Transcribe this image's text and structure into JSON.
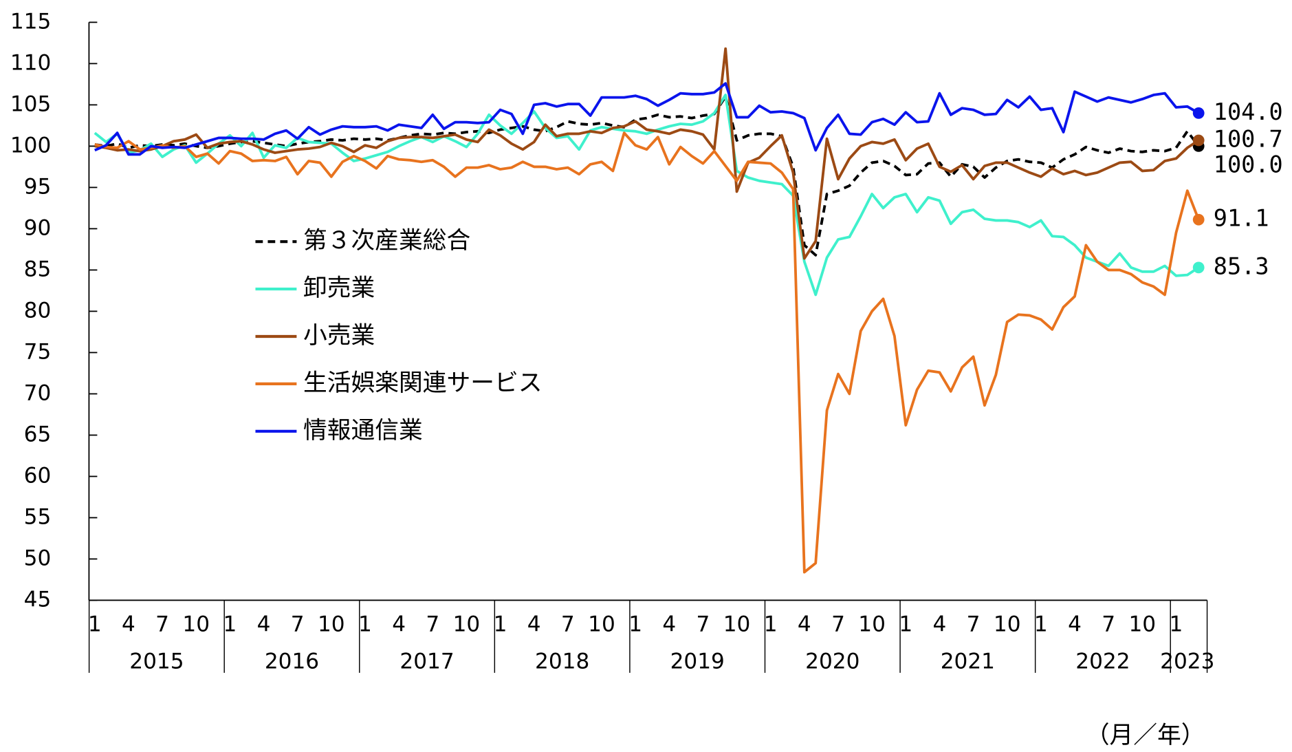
{
  "chart_data": {
    "type": "line",
    "x_unit_label": "（月／年）",
    "categories": [
      "1",
      null,
      null,
      "4",
      null,
      null,
      "7",
      null,
      null,
      "10",
      null,
      null,
      "1",
      null,
      null,
      "4",
      null,
      null,
      "7",
      null,
      null,
      "10",
      null,
      null,
      "1",
      null,
      null,
      "4",
      null,
      null,
      "7",
      null,
      null,
      "10",
      null,
      null,
      "1",
      null,
      null,
      "4",
      null,
      null,
      "7",
      null,
      null,
      "10",
      null,
      null,
      "1",
      null,
      null,
      "4",
      null,
      null,
      "7",
      null,
      null,
      "10",
      null,
      null,
      "1",
      null,
      null,
      "4",
      null,
      null,
      "7",
      null,
      null,
      "10",
      null,
      null,
      "1",
      null,
      null,
      "4",
      null,
      null,
      "7",
      null,
      null,
      "10",
      null,
      null,
      "1",
      null,
      null,
      "4",
      null,
      null,
      "7",
      null,
      null,
      "10",
      null,
      null,
      "1",
      null,
      null
    ],
    "years": [
      "2015",
      "2016",
      "2017",
      "2018",
      "2019",
      "2020",
      "2021",
      "2022",
      "2023"
    ],
    "ylim": [
      45,
      115
    ],
    "yticks": [
      45,
      50,
      55,
      60,
      65,
      70,
      75,
      80,
      85,
      90,
      95,
      100,
      105,
      110,
      115
    ],
    "grid": false,
    "legend": "left",
    "series": [
      {
        "name": "第３次産業総合",
        "color": "#000000",
        "dashed": true,
        "end_label": "100.0",
        "values": [
          100.2,
          100.0,
          100.3,
          99.8,
          100.1,
          100.0,
          100.2,
          100.1,
          100.3,
          100.0,
          99.8,
          100.0,
          100.3,
          100.5,
          100.6,
          100.4,
          100.2,
          100.0,
          100.3,
          100.5,
          100.6,
          100.8,
          100.7,
          100.9,
          100.8,
          100.9,
          100.7,
          101.0,
          101.3,
          101.5,
          101.4,
          101.6,
          101.5,
          101.7,
          101.8,
          101.6,
          102.0,
          102.2,
          102.4,
          102.0,
          101.8,
          102.3,
          103.0,
          102.7,
          102.6,
          102.8,
          102.5,
          102.3,
          103.2,
          103.4,
          103.8,
          103.5,
          103.6,
          103.4,
          103.7,
          103.9,
          106.0,
          100.7,
          101.3,
          101.5,
          101.5,
          101.2,
          97.5,
          88.0,
          86.8,
          94.2,
          94.6,
          95.2,
          96.8,
          98.0,
          98.2,
          97.6,
          96.5,
          96.6,
          97.9,
          98.0,
          96.3,
          97.8,
          97.5,
          96.2,
          97.4,
          98.2,
          98.4,
          98.1,
          98.0,
          97.4,
          98.4,
          99.0,
          99.9,
          99.5,
          99.2,
          99.7,
          99.4,
          99.3,
          99.5,
          99.4,
          99.8,
          101.8,
          100.0
        ]
      },
      {
        "name": "卸売業",
        "color": "#3ff0cc",
        "dashed": false,
        "end_label": "85.3",
        "values": [
          101.6,
          100.5,
          101.5,
          99.2,
          99.5,
          100.3,
          98.7,
          99.6,
          100.1,
          98.0,
          99.1,
          100.3,
          101.3,
          100.0,
          101.6,
          98.6,
          100.1,
          99.8,
          101.0,
          100.5,
          100.4,
          100.3,
          99.2,
          98.2,
          98.5,
          98.9,
          99.3,
          100.0,
          100.6,
          101.1,
          100.5,
          101.2,
          100.6,
          99.9,
          101.5,
          103.8,
          102.5,
          101.5,
          102.8,
          104.2,
          102.2,
          101.0,
          101.2,
          99.6,
          101.9,
          102.3,
          102.1,
          101.9,
          101.8,
          101.5,
          102.0,
          102.4,
          102.7,
          102.6,
          103.0,
          104.0,
          106.2,
          97.0,
          96.2,
          95.8,
          95.6,
          95.4,
          94.0,
          86.0,
          82.0,
          86.5,
          88.7,
          89.0,
          91.5,
          94.2,
          92.5,
          93.8,
          94.2,
          92.0,
          93.8,
          93.4,
          90.6,
          92.0,
          92.3,
          91.2,
          91.0,
          91.0,
          90.8,
          90.2,
          91.0,
          89.1,
          89.0,
          88.0,
          86.5,
          86.0,
          85.5,
          87.0,
          85.3,
          84.8,
          84.8,
          85.5,
          84.3,
          84.4,
          85.3
        ]
      },
      {
        "name": "小売業",
        "color": "#9c4a14",
        "dashed": false,
        "end_label": "100.7",
        "values": [
          100.0,
          99.8,
          99.5,
          99.6,
          99.4,
          99.6,
          100.0,
          100.6,
          100.8,
          101.4,
          99.8,
          100.3,
          100.5,
          100.6,
          100.2,
          99.6,
          99.2,
          99.4,
          99.6,
          99.7,
          99.9,
          100.4,
          100.0,
          99.3,
          100.1,
          99.8,
          100.6,
          101.0,
          101.1,
          101.1,
          101.0,
          101.2,
          101.4,
          100.8,
          100.5,
          102.0,
          101.3,
          100.3,
          99.6,
          100.5,
          102.6,
          101.2,
          101.5,
          101.5,
          101.8,
          101.6,
          102.2,
          102.4,
          103.0,
          102.0,
          101.8,
          101.5,
          102.0,
          101.8,
          101.4,
          99.6,
          111.8,
          94.5,
          98.0,
          98.6,
          100.0,
          101.3,
          96.8,
          86.4,
          88.5,
          100.9,
          96.0,
          98.5,
          100.0,
          100.5,
          100.3,
          100.8,
          98.3,
          99.7,
          100.3,
          97.5,
          96.9,
          97.7,
          96.0,
          97.6,
          98.0,
          98.0,
          97.4,
          96.8,
          96.3,
          97.3,
          96.6,
          97.0,
          96.5,
          96.8,
          97.4,
          98.0,
          98.1,
          97.0,
          97.1,
          98.2,
          98.5,
          99.8,
          100.7
        ]
      },
      {
        "name": "生活娯楽関連サービス",
        "color": "#e8731e",
        "dashed": false,
        "end_label": "91.1",
        "values": [
          100.2,
          99.9,
          99.8,
          100.6,
          99.6,
          99.8,
          100.1,
          99.8,
          100.0,
          98.7,
          99.1,
          97.9,
          99.4,
          99.1,
          98.2,
          98.3,
          98.2,
          98.7,
          96.6,
          98.2,
          98.0,
          96.3,
          98.1,
          98.8,
          98.2,
          97.3,
          98.8,
          98.4,
          98.3,
          98.1,
          98.3,
          97.5,
          96.3,
          97.4,
          97.4,
          97.7,
          97.2,
          97.4,
          98.1,
          97.5,
          97.5,
          97.2,
          97.4,
          96.6,
          97.8,
          98.1,
          97.0,
          101.6,
          100.1,
          99.6,
          101.1,
          97.8,
          99.9,
          98.8,
          97.9,
          99.4,
          97.6,
          95.8,
          98.1,
          98.0,
          97.9,
          96.8,
          94.8,
          48.4,
          49.5,
          68.0,
          72.4,
          70.0,
          77.6,
          80.0,
          81.5,
          77.0,
          66.2,
          70.5,
          72.8,
          72.6,
          70.3,
          73.2,
          74.5,
          68.6,
          72.3,
          78.7,
          79.6,
          79.5,
          79.0,
          77.8,
          80.5,
          81.8,
          88.0,
          86.0,
          85.0,
          85.0,
          84.5,
          83.5,
          83.0,
          82.0,
          89.5,
          94.6,
          91.1
        ]
      },
      {
        "name": "情報通信業",
        "color": "#0a14ec",
        "dashed": false,
        "end_label": "104.0",
        "values": [
          99.5,
          100.1,
          101.6,
          99.0,
          99.0,
          100.0,
          99.8,
          99.9,
          99.8,
          100.2,
          100.6,
          101.0,
          101.0,
          100.9,
          100.9,
          100.8,
          101.5,
          101.9,
          100.9,
          102.3,
          101.4,
          102.0,
          102.4,
          102.3,
          102.3,
          102.4,
          101.9,
          102.6,
          102.4,
          102.2,
          103.8,
          102.1,
          102.9,
          102.9,
          102.8,
          102.9,
          104.4,
          103.9,
          101.5,
          105.0,
          105.2,
          104.8,
          105.1,
          105.1,
          103.7,
          105.9,
          105.9,
          105.9,
          106.1,
          105.7,
          104.9,
          105.6,
          106.4,
          106.3,
          106.3,
          106.5,
          107.6,
          103.5,
          103.5,
          104.9,
          104.1,
          104.2,
          104.0,
          103.4,
          99.5,
          102.2,
          103.8,
          101.5,
          101.4,
          102.9,
          103.3,
          102.6,
          104.1,
          102.9,
          103.0,
          106.4,
          103.8,
          104.6,
          104.4,
          103.8,
          103.9,
          105.6,
          104.7,
          106.0,
          104.4,
          104.6,
          101.7,
          106.6,
          106.0,
          105.4,
          105.9,
          105.6,
          105.3,
          105.7,
          106.2,
          106.4,
          104.7,
          104.8,
          104.0
        ]
      }
    ]
  }
}
